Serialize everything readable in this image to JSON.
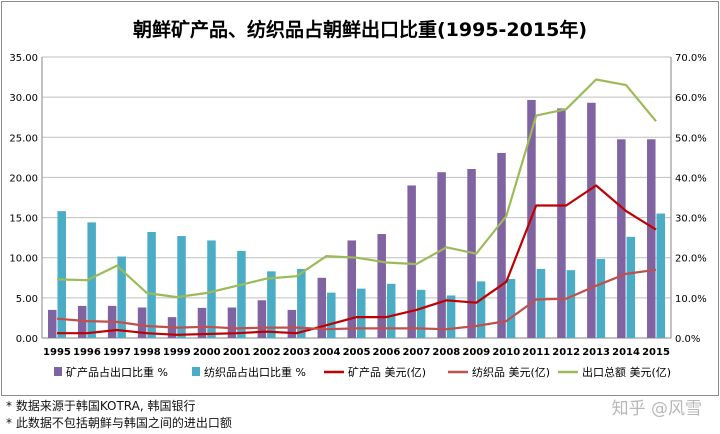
{
  "chart_data": {
    "type": "bar",
    "title": "朝鲜矿产品、纺织品占朝鲜出口比重(1995-2015年)",
    "categories": [
      "1995",
      "1996",
      "1997",
      "1998",
      "1999",
      "2000",
      "2001",
      "2002",
      "2003",
      "2004",
      "2005",
      "2006",
      "2007",
      "2008",
      "2009",
      "2010",
      "2011",
      "2012",
      "2013",
      "2014",
      "2015"
    ],
    "y_left": {
      "min": 0,
      "max": 35,
      "step": 5,
      "tick_labels": [
        "0.00",
        "5.00",
        "10.00",
        "15.00",
        "20.00",
        "25.00",
        "30.00",
        "35.00"
      ]
    },
    "y_right": {
      "min": 0,
      "max": 70,
      "step": 10,
      "tick_labels": [
        "0.0%",
        "10.0%",
        "20.0%",
        "30.0%",
        "40.0%",
        "50.0%",
        "60.0%",
        "70.0%"
      ]
    },
    "grid": true,
    "legend_position": "bottom",
    "series": [
      {
        "name": "矿产品占出口比重 %",
        "kind": "bar",
        "axis": "right",
        "color": "#8064a2",
        "values": [
          7.0,
          8.0,
          8.0,
          7.6,
          5.2,
          7.5,
          7.6,
          9.4,
          7.0,
          15.0,
          24.3,
          25.9,
          38.0,
          41.3,
          42.1,
          46.1,
          59.3,
          57.2,
          58.6,
          49.5,
          49.5
        ]
      },
      {
        "name": "纺织品占出口比重 %",
        "kind": "bar",
        "axis": "right",
        "color": "#4bacc6",
        "values": [
          31.6,
          28.8,
          20.3,
          26.4,
          25.4,
          24.3,
          21.7,
          16.6,
          17.2,
          11.3,
          12.3,
          13.5,
          12.0,
          10.6,
          14.1,
          14.7,
          17.2,
          16.9,
          19.7,
          25.2,
          31.0
        ]
      },
      {
        "name": "矿产品 美元(亿)",
        "kind": "line",
        "axis": "left",
        "color": "#c00000",
        "values": [
          0.6,
          0.6,
          1.0,
          0.6,
          0.4,
          0.5,
          0.6,
          0.8,
          0.6,
          1.6,
          2.6,
          2.6,
          3.5,
          4.7,
          4.4,
          7.0,
          16.5,
          16.5,
          19.0,
          15.8,
          13.5
        ]
      },
      {
        "name": "纺织品 美元(亿)",
        "kind": "line",
        "axis": "left",
        "color": "#c0504d",
        "values": [
          2.4,
          2.1,
          2.0,
          1.5,
          1.3,
          1.4,
          1.2,
          1.3,
          1.3,
          1.1,
          1.2,
          1.2,
          1.2,
          1.1,
          1.5,
          2.1,
          4.8,
          4.9,
          6.5,
          8.0,
          8.5
        ]
      },
      {
        "name": "出口总额 美元(亿)",
        "kind": "line",
        "axis": "left",
        "color": "#9bbb59",
        "values": [
          7.3,
          7.2,
          9.0,
          5.6,
          5.1,
          5.6,
          6.5,
          7.4,
          7.7,
          10.2,
          10.0,
          9.4,
          9.2,
          11.3,
          10.5,
          15.2,
          27.7,
          28.5,
          32.2,
          31.5,
          27.0
        ]
      }
    ]
  },
  "footnotes": [
    "* 数据来源于韩国KOTRA, 韩国银行",
    "* 此数据不包括朝鲜与韩国之间的进出口额"
  ],
  "watermark": "知乎 @风雪"
}
